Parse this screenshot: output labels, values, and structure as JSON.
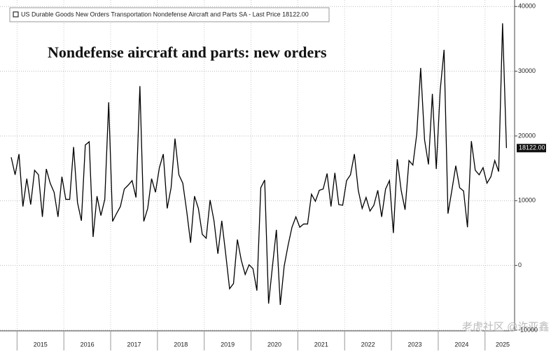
{
  "chart_data": {
    "type": "line",
    "legend": "US Durable Goods New Orders Transportation Nondefense Aircraft and Parts SA - Last Price 18122.00",
    "title": "Nondefense aircraft and parts: new orders",
    "last_price": 18122,
    "last_price_label": "18122.00",
    "watermark": "老虎社区 @许亚鑫",
    "color": "#000000",
    "xticks": [
      2015,
      2016,
      2017,
      2018,
      2019,
      2020,
      2021,
      2022,
      2023,
      2024,
      2025
    ],
    "ylim": [
      -10000,
      41000
    ],
    "yticks": [
      {
        "value": -10000,
        "label": "-10000"
      },
      0,
      10000,
      20000,
      30000,
      40000
    ],
    "grid": true,
    "values": [
      16700,
      14000,
      17200,
      9100,
      13400,
      9400,
      14700,
      14000,
      7500,
      14900,
      12700,
      11300,
      7500,
      13700,
      10200,
      10200,
      18300,
      9700,
      6900,
      18600,
      19100,
      4400,
      10700,
      7700,
      10200,
      25200,
      6800,
      8000,
      9100,
      11800,
      12400,
      13100,
      10500,
      27700,
      6800,
      8800,
      13400,
      11300,
      15100,
      17200,
      8800,
      12000,
      19600,
      14000,
      12700,
      8400,
      3500,
      10700,
      8800,
      4800,
      4200,
      10100,
      6900,
      1800,
      6900,
      1800,
      -3600,
      -2800,
      4000,
      800,
      -1400,
      100,
      -500,
      -3900,
      12000,
      13200,
      -5900,
      -100,
      5500,
      -6100,
      -100,
      3100,
      5900,
      7500,
      5900,
      6400,
      6400,
      11000,
      9900,
      11600,
      11800,
      14200,
      9100,
      14300,
      9400,
      9300,
      13100,
      14000,
      17200,
      11600,
      8800,
      10500,
      8400,
      9300,
      11600,
      7500,
      11800,
      13100,
      5000,
      16400,
      11600,
      8600,
      16200,
      15500,
      20300,
      30500,
      19400,
      15600,
      26500,
      14900,
      27000,
      33300,
      8000,
      11600,
      15400,
      12000,
      11500,
      5900,
      19200,
      14700,
      14000,
      15100,
      12700,
      13700,
      16200,
      14500,
      37400,
      18122
    ]
  }
}
